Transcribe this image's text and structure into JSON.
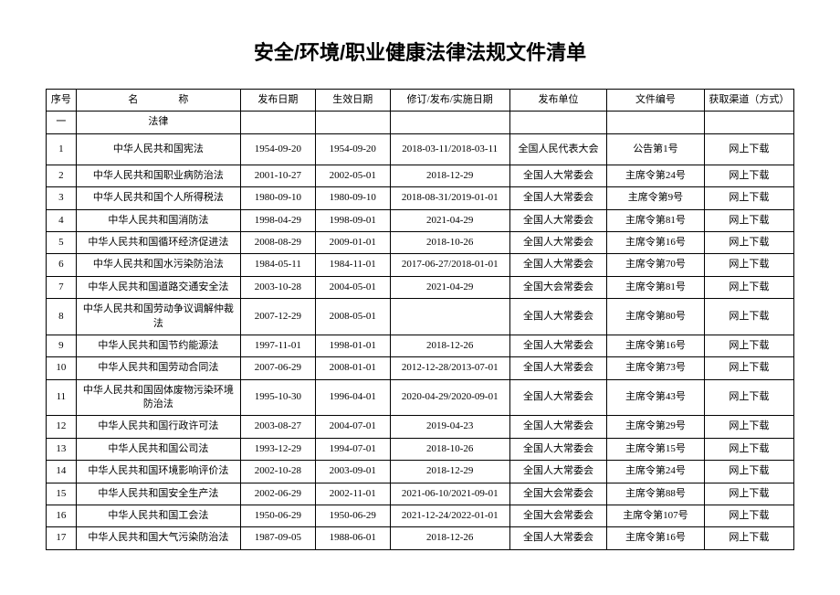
{
  "title": "安全/环境/职业健康法律法规文件清单",
  "headers": {
    "seq": "序号",
    "name": "名　　　　称",
    "pub": "发布日期",
    "eff": "生效日期",
    "rev": "修订/发布/实施日期",
    "org": "发布单位",
    "doc": "文件编号",
    "src": "获取渠道（方式）"
  },
  "section": {
    "seq": "一",
    "name": "法律"
  },
  "rows": [
    {
      "seq": "1",
      "name": "中华人民共和国宪法",
      "pub": "1954-09-20",
      "eff": "1954-09-20",
      "rev": "2018-03-11/2018-03-11",
      "org": "全国人民代表大会",
      "doc": "公告第1号",
      "src": "网上下载",
      "tall": true
    },
    {
      "seq": "2",
      "name": "中华人民共和国职业病防治法",
      "pub": "2001-10-27",
      "eff": "2002-05-01",
      "rev": "2018-12-29",
      "org": "全国人大常委会",
      "doc": "主席令第24号",
      "src": "网上下载"
    },
    {
      "seq": "3",
      "name": "中华人民共和国个人所得税法",
      "pub": "1980-09-10",
      "eff": "1980-09-10",
      "rev": "2018-08-31/2019-01-01",
      "org": "全国人大常委会",
      "doc": "主席令第9号",
      "src": "网上下载"
    },
    {
      "seq": "4",
      "name": "中华人民共和国消防法",
      "pub": "1998-04-29",
      "eff": "1998-09-01",
      "rev": "2021-04-29",
      "org": "全国人大常委会",
      "doc": "主席令第81号",
      "src": "网上下载"
    },
    {
      "seq": "5",
      "name": "中华人民共和国循环经济促进法",
      "pub": "2008-08-29",
      "eff": "2009-01-01",
      "rev": "2018-10-26",
      "org": "全国人大常委会",
      "doc": "主席令第16号",
      "src": "网上下载"
    },
    {
      "seq": "6",
      "name": "中华人民共和国水污染防治法",
      "pub": "1984-05-11",
      "eff": "1984-11-01",
      "rev": "2017-06-27/2018-01-01",
      "org": "全国人大常委会",
      "doc": "主席令第70号",
      "src": "网上下载"
    },
    {
      "seq": "7",
      "name": "中华人民共和国道路交通安全法",
      "pub": "2003-10-28",
      "eff": "2004-05-01",
      "rev": "2021-04-29",
      "org": "全国大会常委会",
      "doc": "主席令第81号",
      "src": "网上下载"
    },
    {
      "seq": "8",
      "name": "中华人民共和国劳动争议调解仲裁法",
      "pub": "2007-12-29",
      "eff": "2008-05-01",
      "rev": "",
      "org": "全国人大常委会",
      "doc": "主席令第80号",
      "src": "网上下载"
    },
    {
      "seq": "9",
      "name": "中华人民共和国节约能源法",
      "pub": "1997-11-01",
      "eff": "1998-01-01",
      "rev": "2018-12-26",
      "org": "全国人大常委会",
      "doc": "主席令第16号",
      "src": "网上下载"
    },
    {
      "seq": "10",
      "name": "中华人民共和国劳动合同法",
      "pub": "2007-06-29",
      "eff": "2008-01-01",
      "rev": "2012-12-28/2013-07-01",
      "org": "全国人大常委会",
      "doc": "主席令第73号",
      "src": "网上下载"
    },
    {
      "seq": "11",
      "name": "中华人民共和国固体废物污染环境防治法",
      "pub": "1995-10-30",
      "eff": "1996-04-01",
      "rev": "2020-04-29/2020-09-01",
      "org": "全国人大常委会",
      "doc": "主席令第43号",
      "src": "网上下载",
      "tall": true
    },
    {
      "seq": "12",
      "name": "中华人民共和国行政许可法",
      "pub": "2003-08-27",
      "eff": "2004-07-01",
      "rev": "2019-04-23",
      "org": "全国人大常委会",
      "doc": "主席令第29号",
      "src": "网上下载"
    },
    {
      "seq": "13",
      "name": "中华人民共和国公司法",
      "pub": "1993-12-29",
      "eff": "1994-07-01",
      "rev": "2018-10-26",
      "org": "全国人大常委会",
      "doc": "主席令第15号",
      "src": "网上下载"
    },
    {
      "seq": "14",
      "name": "中华人民共和国环境影响评价法",
      "pub": "2002-10-28",
      "eff": "2003-09-01",
      "rev": "2018-12-29",
      "org": "全国人大常委会",
      "doc": "主席令第24号",
      "src": "网上下载"
    },
    {
      "seq": "15",
      "name": "中华人民共和国安全生产法",
      "pub": "2002-06-29",
      "eff": "2002-11-01",
      "rev": "2021-06-10/2021-09-01",
      "org": "全国大会常委会",
      "doc": "主席令第88号",
      "src": "网上下载"
    },
    {
      "seq": "16",
      "name": "中华人民共和国工会法",
      "pub": "1950-06-29",
      "eff": "1950-06-29",
      "rev": "2021-12-24/2022-01-01",
      "org": "全国大会常委会",
      "doc": "主席令第107号",
      "src": "网上下载"
    },
    {
      "seq": "17",
      "name": "中华人民共和国大气污染防治法",
      "pub": "1987-09-05",
      "eff": "1988-06-01",
      "rev": "2018-12-26",
      "org": "全国人大常委会",
      "doc": "主席令第16号",
      "src": "网上下载"
    }
  ]
}
